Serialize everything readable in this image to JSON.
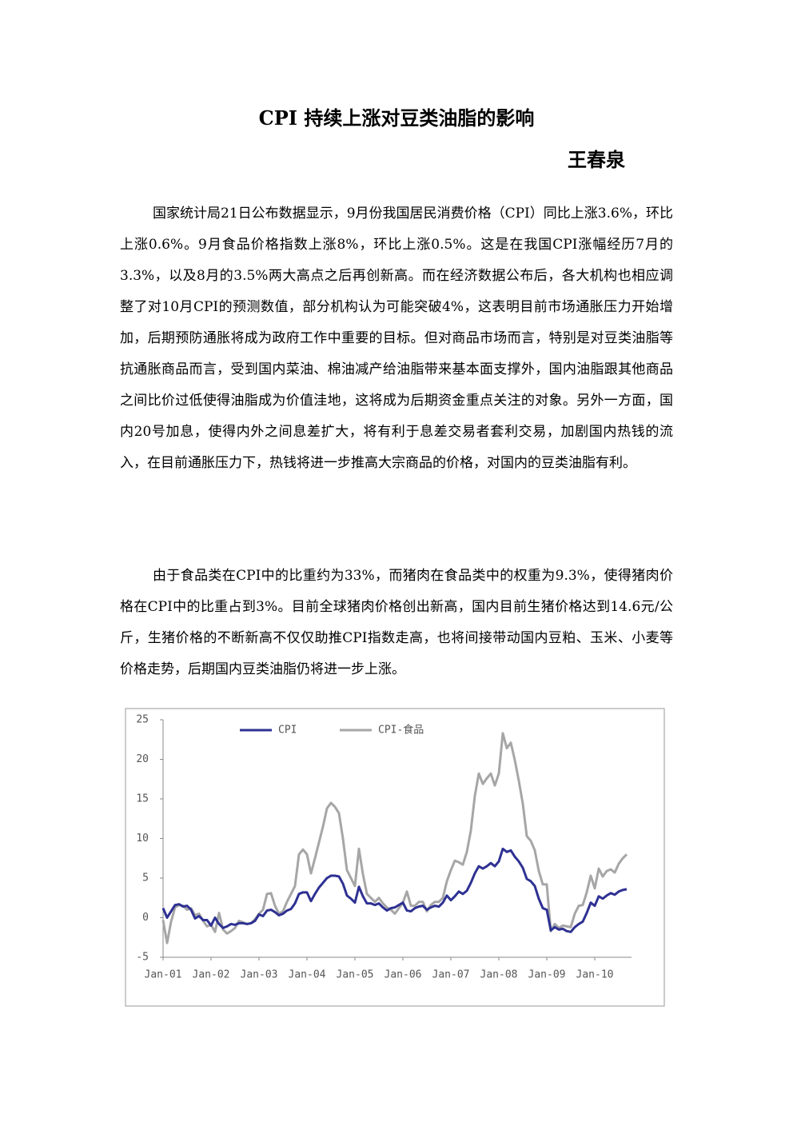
{
  "header": {
    "title": "CPI 持续上涨对豆类油脂的影响",
    "author": "王春泉"
  },
  "paragraphs": [
    "国家统计局21日公布数据显示，9月份我国居民消费价格（CPI）同比上涨3.6%，环比上涨0.6%。9月食品价格指数上涨8%，环比上涨0.5%。这是在我国CPI涨幅经历7月的3.3%，以及8月的3.5%两大高点之后再创新高。而在经济数据公布后，各大机构也相应调整了对10月CPI的预测数值，部分机构认为可能突破4%，这表明目前市场通胀压力开始增加，后期预防通胀将成为政府工作中重要的目标。但对商品市场而言，特别是对豆类油脂等抗通胀商品而言，受到国内菜油、棉油减产给油脂带来基本面支撑外，国内油脂跟其他商品之间比价过低使得油脂成为价值洼地，这将成为后期资金重点关注的对象。另外一方面，国内20号加息，使得内外之间息差扩大，将有利于息差交易者套利交易，加剧国内热钱的流入，在目前通胀压力下，热钱将进一步推高大宗商品的价格，对国内的豆类油脂有利。",
    "由于食品类在CPI中的比重约为33%，而猪肉在食品类中的权重为9.3%，使得猪肉价格在CPI中的比重占到3%。目前全球猪肉价格创出新高，国内目前生猪价格达到14.6元/公斤，生猪价格的不断新高不仅仅助推CPI指数走高，也将间接带动国内豆粕、玉米、小麦等价格走势，后期国内豆类油脂仍将进一步上涨。"
  ],
  "chart_data": {
    "type": "line",
    "categories": [
      "Jan-01",
      null,
      null,
      null,
      null,
      null,
      null,
      null,
      null,
      null,
      null,
      null,
      "Jan-02",
      null,
      null,
      null,
      null,
      null,
      null,
      null,
      null,
      null,
      null,
      null,
      "Jan-03",
      null,
      null,
      null,
      null,
      null,
      null,
      null,
      null,
      null,
      null,
      null,
      "Jan-04",
      null,
      null,
      null,
      null,
      null,
      null,
      null,
      null,
      null,
      null,
      null,
      "Jan-05",
      null,
      null,
      null,
      null,
      null,
      null,
      null,
      null,
      null,
      null,
      null,
      "Jan-06",
      null,
      null,
      null,
      null,
      null,
      null,
      null,
      null,
      null,
      null,
      null,
      "Jan-07",
      null,
      null,
      null,
      null,
      null,
      null,
      null,
      null,
      null,
      null,
      null,
      "Jan-08",
      null,
      null,
      null,
      null,
      null,
      null,
      null,
      null,
      null,
      null,
      null,
      "Jan-09",
      null,
      null,
      null,
      null,
      null,
      null,
      null,
      null,
      null,
      null,
      null,
      "Jan-10",
      null,
      null,
      null,
      null,
      null,
      null,
      null,
      null
    ],
    "series": [
      {
        "name": "CPI",
        "color": "#2e3192",
        "values": [
          1.2,
          0.0,
          0.8,
          1.6,
          1.7,
          1.4,
          1.5,
          1.0,
          -0.1,
          0.2,
          -0.3,
          -0.3,
          -1.0,
          0.0,
          -0.8,
          -1.3,
          -1.1,
          -0.8,
          -0.9,
          -0.7,
          -0.7,
          -0.8,
          -0.7,
          -0.4,
          0.4,
          0.2,
          0.9,
          1.0,
          0.7,
          0.3,
          0.5,
          0.9,
          1.1,
          1.8,
          3.0,
          3.2,
          3.2,
          2.1,
          3.0,
          3.8,
          4.4,
          5.0,
          5.3,
          5.3,
          5.2,
          4.3,
          2.8,
          2.4,
          1.9,
          3.9,
          2.7,
          1.8,
          1.8,
          1.6,
          1.8,
          1.3,
          0.9,
          1.2,
          1.3,
          1.6,
          1.9,
          0.9,
          0.8,
          1.2,
          1.4,
          1.5,
          1.0,
          1.3,
          1.5,
          1.4,
          1.9,
          2.8,
          2.2,
          2.7,
          3.3,
          3.0,
          3.4,
          4.4,
          5.6,
          6.5,
          6.2,
          6.5,
          6.9,
          6.5,
          7.1,
          8.7,
          8.3,
          8.5,
          7.7,
          7.1,
          6.3,
          4.9,
          4.6,
          4.0,
          2.4,
          1.2,
          1.0,
          -1.6,
          -1.2,
          -1.5,
          -1.4,
          -1.7,
          -1.8,
          -1.2,
          -0.8,
          -0.5,
          0.6,
          1.9,
          1.5,
          2.7,
          2.4,
          2.8,
          3.1,
          2.9,
          3.3,
          3.5,
          3.6
        ]
      },
      {
        "name": "CPI-食品",
        "color": "#a6a6a6",
        "values": [
          -0.3,
          -3.2,
          -0.5,
          1.3,
          1.6,
          1.5,
          1.0,
          1.2,
          0.3,
          0.5,
          -0.4,
          -1.1,
          -0.9,
          -1.8,
          0.6,
          -1.5,
          -2.0,
          -1.7,
          -1.3,
          -0.4,
          -0.6,
          -0.8,
          -0.7,
          -0.2,
          0.5,
          1.0,
          3.0,
          3.1,
          1.5,
          0.5,
          0.8,
          2.0,
          3.0,
          4.0,
          8.0,
          8.6,
          8.0,
          5.6,
          7.5,
          9.5,
          11.5,
          13.8,
          14.5,
          14.0,
          13.2,
          10.0,
          6.0,
          5.0,
          4.0,
          8.7,
          5.5,
          3.0,
          2.5,
          2.0,
          2.5,
          1.8,
          1.3,
          1.0,
          0.5,
          1.2,
          1.9,
          3.3,
          1.5,
          1.5,
          2.0,
          2.0,
          0.8,
          1.6,
          2.0,
          2.0,
          2.5,
          4.6,
          6.0,
          7.2,
          7.0,
          6.7,
          8.3,
          11.0,
          15.4,
          18.2,
          16.9,
          17.6,
          18.2,
          16.7,
          18.2,
          23.3,
          21.4,
          22.1,
          19.9,
          17.3,
          14.4,
          10.3,
          9.7,
          8.5,
          5.9,
          4.2,
          4.2,
          -1.7,
          -0.8,
          -1.3,
          -1.0,
          -1.1,
          -1.2,
          0.5,
          1.5,
          1.6,
          3.2,
          5.3,
          3.7,
          6.2,
          5.2,
          5.9,
          6.1,
          5.7,
          6.8,
          7.5,
          8.0
        ]
      }
    ],
    "ylim": [
      -5,
      25
    ],
    "yticks": [
      -5,
      0,
      5,
      10,
      15,
      20,
      25
    ],
    "legend": "top"
  }
}
